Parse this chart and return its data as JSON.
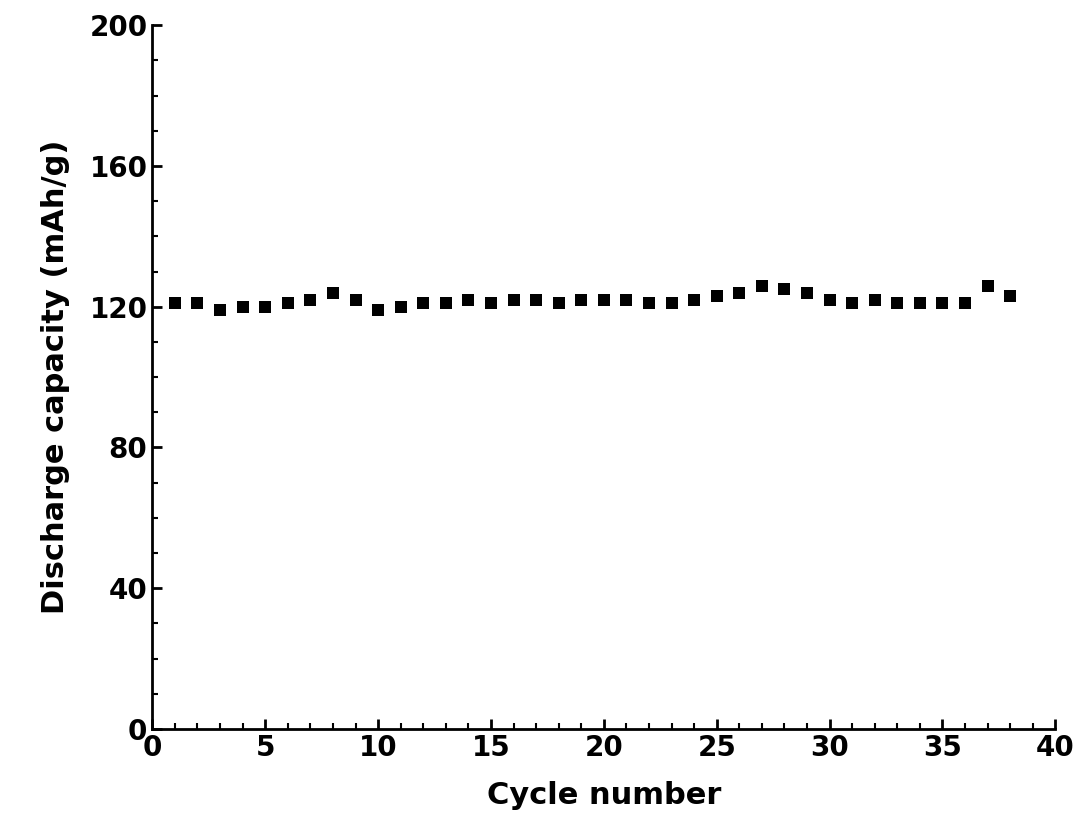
{
  "x": [
    1,
    2,
    3,
    4,
    5,
    6,
    7,
    8,
    9,
    10,
    11,
    12,
    13,
    14,
    15,
    16,
    17,
    18,
    19,
    20,
    21,
    22,
    23,
    24,
    25,
    26,
    27,
    28,
    29,
    30,
    31,
    32,
    33,
    34,
    35,
    36,
    37,
    38
  ],
  "y": [
    121,
    121,
    119,
    120,
    120,
    121,
    122,
    124,
    122,
    119,
    120,
    121,
    121,
    122,
    121,
    122,
    122,
    121,
    122,
    122,
    122,
    121,
    121,
    122,
    123,
    124,
    126,
    125,
    124,
    122,
    121,
    122,
    121,
    121,
    121,
    121,
    126,
    123
  ],
  "xlabel": "Cycle number",
  "ylabel": "Discharge capacity (mAh/g)",
  "xlim": [
    0,
    40
  ],
  "ylim": [
    0,
    200
  ],
  "xticks": [
    0,
    5,
    10,
    15,
    20,
    25,
    30,
    35,
    40
  ],
  "yticks": [
    0,
    40,
    80,
    120,
    160,
    200
  ],
  "marker": "s",
  "marker_color": "black",
  "marker_size": 9,
  "spine_linewidth": 2.0,
  "tick_fontsize": 20,
  "label_fontsize": 22,
  "fig_width": 10.88,
  "fig_height": 8.38,
  "dpi": 100
}
